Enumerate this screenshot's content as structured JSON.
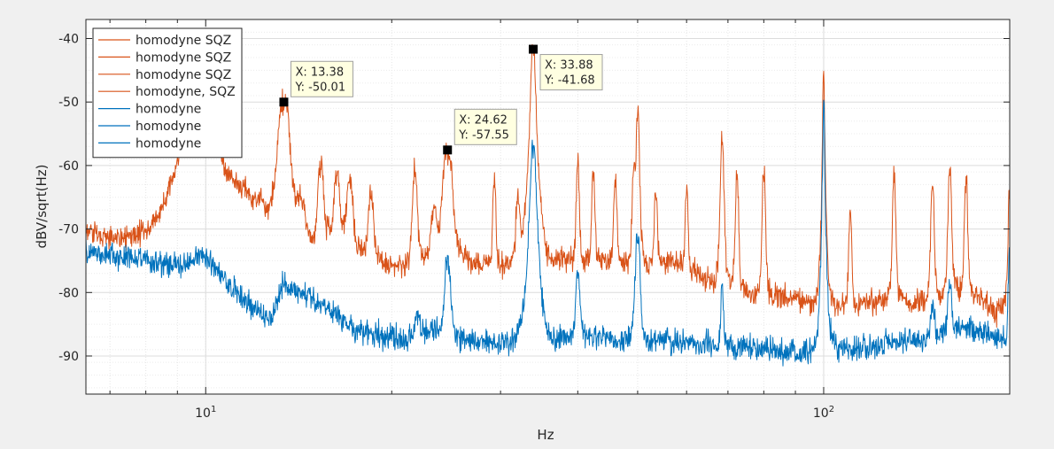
{
  "colors": {
    "sqz": "#d95319",
    "homodyne": "#0072bd",
    "background": "#f0f0f0",
    "axes": "#ffffff",
    "grid": "#dfdfdf",
    "datatip_bg": "#ffffe1"
  },
  "chart_data": {
    "type": "line",
    "title": "",
    "xlabel": "Hz",
    "ylabel": "dBV/sqrt(Hz)",
    "xscale": "log",
    "xlim": [
      6.4,
      200
    ],
    "ylim": [
      -96,
      -37
    ],
    "grid": true,
    "minor_grid": true,
    "legend_position": "top-left",
    "x_ticks": [
      {
        "value": 10,
        "base": "10",
        "exp": "1"
      },
      {
        "value": 100,
        "base": "10",
        "exp": "2"
      }
    ],
    "y_ticks": [
      {
        "value": -40,
        "label": "-40"
      },
      {
        "value": -50,
        "label": "-50"
      },
      {
        "value": -60,
        "label": "-60"
      },
      {
        "value": -70,
        "label": "-70"
      },
      {
        "value": -80,
        "label": "-80"
      },
      {
        "value": -90,
        "label": "-90"
      }
    ],
    "legend": [
      {
        "label": "homodyne SQZ",
        "series": "sqz"
      },
      {
        "label": "homodyne SQZ",
        "series": "sqz"
      },
      {
        "label": "homodyne SQZ",
        "series": "sqz"
      },
      {
        "label": "homodyne, SQZ",
        "series": "sqz"
      },
      {
        "label": "homodyne",
        "series": "homodyne"
      },
      {
        "label": "homodyne",
        "series": "homodyne"
      },
      {
        "label": "homodyne",
        "series": "homodyne"
      }
    ],
    "datatips": [
      {
        "x": 13.38,
        "y": -50.01,
        "x_label": "X: 13.38",
        "y_label": "Y: -50.01",
        "placement": "above-right"
      },
      {
        "x": 24.62,
        "y": -57.55,
        "x_label": "X: 24.62",
        "y_label": "Y: -57.55",
        "placement": "above-right"
      },
      {
        "x": 33.88,
        "y": -41.68,
        "x_label": "X: 33.88",
        "y_label": "Y: -41.68",
        "placement": "below-right"
      }
    ],
    "series": [
      {
        "name": "homodyne SQZ",
        "color_key": "sqz",
        "baseline": [
          [
            6.4,
            -70.5
          ],
          [
            7.0,
            -71.5
          ],
          [
            7.8,
            -72.5
          ],
          [
            8.5,
            -72.5
          ],
          [
            9.0,
            -71.5
          ],
          [
            9.4,
            -67
          ],
          [
            9.8,
            -65
          ],
          [
            10.3,
            -63
          ],
          [
            11.0,
            -64
          ],
          [
            11.7,
            -65
          ],
          [
            12.5,
            -70
          ],
          [
            13.0,
            -69
          ],
          [
            13.8,
            -70
          ],
          [
            14.5,
            -72
          ],
          [
            15.3,
            -73
          ],
          [
            16,
            -70
          ],
          [
            17,
            -71
          ],
          [
            18,
            -74
          ],
          [
            19,
            -75
          ],
          [
            20,
            -76
          ],
          [
            21,
            -76
          ],
          [
            22,
            -74.5
          ],
          [
            24,
            -74
          ],
          [
            26,
            -75
          ],
          [
            28,
            -75.5
          ],
          [
            30,
            -76
          ],
          [
            32,
            -75.5
          ],
          [
            35,
            -76
          ],
          [
            38,
            -75
          ],
          [
            42,
            -75
          ],
          [
            46,
            -75
          ],
          [
            50,
            -76
          ],
          [
            55,
            -75
          ],
          [
            60,
            -76
          ],
          [
            65,
            -78
          ],
          [
            70,
            -79
          ],
          [
            75,
            -80
          ],
          [
            80,
            -81
          ],
          [
            85,
            -80.5
          ],
          [
            90,
            -81
          ],
          [
            95,
            -82
          ],
          [
            100,
            -82.5
          ],
          [
            110,
            -82
          ],
          [
            120,
            -81.5
          ],
          [
            130,
            -81
          ],
          [
            140,
            -81.5
          ],
          [
            150,
            -81
          ],
          [
            160,
            -80
          ],
          [
            170,
            -80
          ],
          [
            180,
            -81
          ],
          [
            190,
            -83
          ],
          [
            200,
            -82
          ]
        ],
        "noise_db": 1.3,
        "peaks": [
          {
            "x": 9.77,
            "y": -52.5,
            "w": 0.025
          },
          {
            "x": 10.6,
            "y": -64,
            "w": 0.015
          },
          {
            "x": 11.3,
            "y": -64.5,
            "w": 0.015
          },
          {
            "x": 12.1,
            "y": -66,
            "w": 0.012
          },
          {
            "x": 13.38,
            "y": -50.01,
            "w": 0.007
          },
          {
            "x": 14.25,
            "y": -66,
            "w": 0.006
          },
          {
            "x": 15.35,
            "y": -60,
            "w": 0.004
          },
          {
            "x": 16.3,
            "y": -61,
            "w": 0.004
          },
          {
            "x": 17.1,
            "y": -62,
            "w": 0.004
          },
          {
            "x": 18.5,
            "y": -65,
            "w": 0.004
          },
          {
            "x": 21.8,
            "y": -61,
            "w": 0.003
          },
          {
            "x": 23.4,
            "y": -67,
            "w": 0.004
          },
          {
            "x": 24.62,
            "y": -57.55,
            "w": 0.006
          },
          {
            "x": 29.3,
            "y": -62,
            "w": 0.002
          },
          {
            "x": 32.0,
            "y": -66,
            "w": 0.003
          },
          {
            "x": 33.88,
            "y": -41.68,
            "w": 0.003
          },
          {
            "x": 40.0,
            "y": -60,
            "w": 0.002
          },
          {
            "x": 42.4,
            "y": -61,
            "w": 0.002
          },
          {
            "x": 46.0,
            "y": -62,
            "w": 0.002
          },
          {
            "x": 49.3,
            "y": -60,
            "w": 0.002
          },
          {
            "x": 50.0,
            "y": -52,
            "w": 0.002
          },
          {
            "x": 53.5,
            "y": -64,
            "w": 0.002
          },
          {
            "x": 60.0,
            "y": -64,
            "w": 0.002
          },
          {
            "x": 68.5,
            "y": -56,
            "w": 0.002
          },
          {
            "x": 72.4,
            "y": -62,
            "w": 0.002
          },
          {
            "x": 80.0,
            "y": -61,
            "w": 0.002
          },
          {
            "x": 100.0,
            "y": -46,
            "w": 0.0012
          },
          {
            "x": 110.4,
            "y": -68,
            "w": 0.002
          },
          {
            "x": 130.0,
            "y": -62,
            "w": 0.002
          },
          {
            "x": 150.0,
            "y": -63,
            "w": 0.002
          },
          {
            "x": 160.0,
            "y": -60,
            "w": 0.002
          },
          {
            "x": 170.0,
            "y": -63,
            "w": 0.002
          },
          {
            "x": 200.0,
            "y": -64,
            "w": 0.002
          }
        ]
      },
      {
        "name": "homodyne",
        "color_key": "homodyne",
        "baseline": [
          [
            6.4,
            -73.5
          ],
          [
            7.5,
            -74.5
          ],
          [
            8.5,
            -75.5
          ],
          [
            9.0,
            -76
          ],
          [
            9.5,
            -75
          ],
          [
            9.8,
            -74
          ],
          [
            10.3,
            -76
          ],
          [
            11,
            -79
          ],
          [
            11.8,
            -82
          ],
          [
            12.5,
            -84
          ],
          [
            13.0,
            -83
          ],
          [
            13.5,
            -80
          ],
          [
            14.0,
            -79
          ],
          [
            15,
            -81
          ],
          [
            16,
            -83
          ],
          [
            17,
            -85
          ],
          [
            18,
            -86.5
          ],
          [
            20,
            -87
          ],
          [
            21,
            -87.5
          ],
          [
            22,
            -86.5
          ],
          [
            24,
            -86
          ],
          [
            26,
            -87.5
          ],
          [
            28,
            -88
          ],
          [
            30,
            -88
          ],
          [
            33,
            -87.5
          ],
          [
            36,
            -88
          ],
          [
            40,
            -86.5
          ],
          [
            45,
            -87
          ],
          [
            50,
            -88
          ],
          [
            55,
            -87.5
          ],
          [
            60,
            -88
          ],
          [
            70,
            -88.5
          ],
          [
            80,
            -89
          ],
          [
            90,
            -89.5
          ],
          [
            100,
            -89
          ],
          [
            110,
            -89
          ],
          [
            120,
            -88.5
          ],
          [
            130,
            -88
          ],
          [
            140,
            -87.5
          ],
          [
            150,
            -87
          ],
          [
            160,
            -86
          ],
          [
            170,
            -85.5
          ],
          [
            180,
            -86
          ],
          [
            190,
            -87
          ],
          [
            200,
            -87.5
          ]
        ],
        "noise_db": 1.4,
        "peaks": [
          {
            "x": 13.38,
            "y": -79,
            "w": 0.008
          },
          {
            "x": 22.0,
            "y": -83,
            "w": 0.004
          },
          {
            "x": 24.62,
            "y": -75,
            "w": 0.004
          },
          {
            "x": 33.88,
            "y": -57,
            "w": 0.0035
          },
          {
            "x": 40.0,
            "y": -77,
            "w": 0.003
          },
          {
            "x": 50.0,
            "y": -71,
            "w": 0.003
          },
          {
            "x": 68.5,
            "y": -79,
            "w": 0.002
          },
          {
            "x": 100.0,
            "y": -51,
            "w": 0.0012
          },
          {
            "x": 150.0,
            "y": -82,
            "w": 0.003
          },
          {
            "x": 160.0,
            "y": -79,
            "w": 0.003
          },
          {
            "x": 200.0,
            "y": -74,
            "w": 0.002
          }
        ]
      }
    ]
  }
}
